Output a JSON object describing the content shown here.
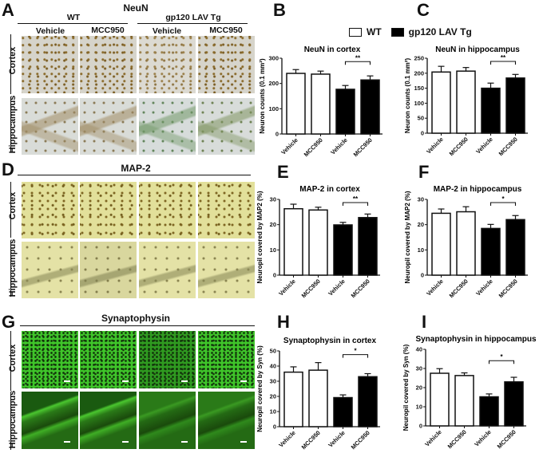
{
  "legend": {
    "items": [
      {
        "label": "WT",
        "fill": "#ffffff"
      },
      {
        "label": "gp120 LAV Tg",
        "fill": "#000000"
      }
    ]
  },
  "panels": {
    "A": {
      "letter": "A",
      "title": "NeuN",
      "group1": "WT",
      "group2": "gp120 LAV  Tg",
      "cols": [
        "Vehicle",
        "MCC950",
        "Vehicle",
        "MCC950"
      ],
      "rows": [
        "Cortex",
        "Hippocampus"
      ]
    },
    "D": {
      "letter": "D",
      "title": "MAP-2",
      "rows": [
        "Cortex",
        "Hippocampus"
      ]
    },
    "G": {
      "letter": "G",
      "title": "Synaptophysin",
      "rows": [
        "Cortex",
        "Hippocampus"
      ]
    },
    "B": {
      "letter": "B"
    },
    "C": {
      "letter": "C"
    },
    "E": {
      "letter": "E"
    },
    "F": {
      "letter": "F"
    },
    "H": {
      "letter": "H"
    },
    "I": {
      "letter": "I"
    }
  },
  "chart_data": [
    {
      "panel": "B",
      "type": "bar",
      "title": "NeuN in cortex",
      "ylabel": "Neuron counts (0.1 mm²)",
      "ylim": [
        0,
        300
      ],
      "yticks": [
        0,
        100,
        200,
        300
      ],
      "categories": [
        "Vehicle",
        "MCC950",
        "Vehicle",
        "MCC950"
      ],
      "groups": [
        "WT",
        "WT",
        "gp120 LAV Tg",
        "gp120 LAV Tg"
      ],
      "values": [
        240,
        237,
        177,
        214
      ],
      "errors": [
        15,
        12,
        15,
        16
      ],
      "significance": {
        "between": [
          2,
          3
        ],
        "label": "**"
      }
    },
    {
      "panel": "C",
      "type": "bar",
      "title": "NeuN in hippocampus",
      "ylabel": "Neuron counts (0.1 mm²)",
      "ylim": [
        0,
        250
      ],
      "yticks": [
        0,
        50,
        100,
        150,
        200,
        250
      ],
      "categories": [
        "Vehicle",
        "MCC950",
        "Vehicle",
        "MCC950"
      ],
      "groups": [
        "WT",
        "WT",
        "gp120 LAV Tg",
        "gp120 LAV Tg"
      ],
      "values": [
        204,
        207,
        150,
        184
      ],
      "errors": [
        19,
        12,
        17,
        12
      ],
      "significance": {
        "between": [
          2,
          3
        ],
        "label": "**"
      }
    },
    {
      "panel": "E",
      "type": "bar",
      "title": "MAP-2 in cortex",
      "ylabel": "Neuropil covered by MAP2 (%)",
      "ylim": [
        0,
        30
      ],
      "yticks": [
        0,
        10,
        20,
        30
      ],
      "categories": [
        "Vehicle",
        "MCC950",
        "Vehicle",
        "MCC950"
      ],
      "groups": [
        "WT",
        "WT",
        "gp120 LAV Tg",
        "gp120 LAV Tg"
      ],
      "values": [
        26.3,
        25.8,
        19.9,
        22.8
      ],
      "errors": [
        1.8,
        1.1,
        1.0,
        1.4
      ],
      "significance": {
        "between": [
          2,
          3
        ],
        "label": "**"
      }
    },
    {
      "panel": "F",
      "type": "bar",
      "title": "MAP-2 in hippocampus",
      "ylabel": "Neuropil covered by MAP2 (%)",
      "ylim": [
        0,
        30
      ],
      "yticks": [
        0,
        10,
        20,
        30
      ],
      "categories": [
        "Vehicle",
        "MCC950",
        "Vehicle",
        "MCC950"
      ],
      "groups": [
        "WT",
        "WT",
        "gp120 LAV Tg",
        "gp120 LAV Tg"
      ],
      "values": [
        24.5,
        25.1,
        18.5,
        22.0
      ],
      "errors": [
        1.7,
        2.0,
        1.6,
        1.6
      ],
      "significance": {
        "between": [
          2,
          3
        ],
        "label": "*"
      }
    },
    {
      "panel": "H",
      "type": "bar",
      "title": "Synaptophysin in cortex",
      "ylabel": "Neuropil covered by Syn (%)",
      "ylim": [
        0,
        50
      ],
      "yticks": [
        0,
        10,
        20,
        30,
        40,
        50
      ],
      "categories": [
        "Vehicle",
        "MCC950",
        "Vehicle",
        "MCC950"
      ],
      "groups": [
        "WT",
        "WT",
        "gp120 LAV Tg",
        "gp120 LAV Tg"
      ],
      "values": [
        36,
        37.3,
        19.2,
        33
      ],
      "errors": [
        3.5,
        5.0,
        1.8,
        2.0
      ],
      "significance": {
        "between": [
          2,
          3
        ],
        "label": "*"
      }
    },
    {
      "panel": "I",
      "type": "bar",
      "title": "Synaptophysin in hippocampus",
      "ylabel": "Neuropil covered by Syn (%)",
      "ylim": [
        0,
        40
      ],
      "yticks": [
        0,
        10,
        20,
        30,
        40
      ],
      "categories": [
        "Vehicle",
        "MCC950",
        "Vehicle",
        "MCC950"
      ],
      "groups": [
        "WT",
        "WT",
        "gp120 LAV Tg",
        "gp120 LAV Tg"
      ],
      "values": [
        27.5,
        26.3,
        15.2,
        23
      ],
      "errors": [
        2.4,
        1.4,
        1.5,
        2.4
      ],
      "significance": {
        "between": [
          2,
          3
        ],
        "label": "*"
      }
    }
  ]
}
